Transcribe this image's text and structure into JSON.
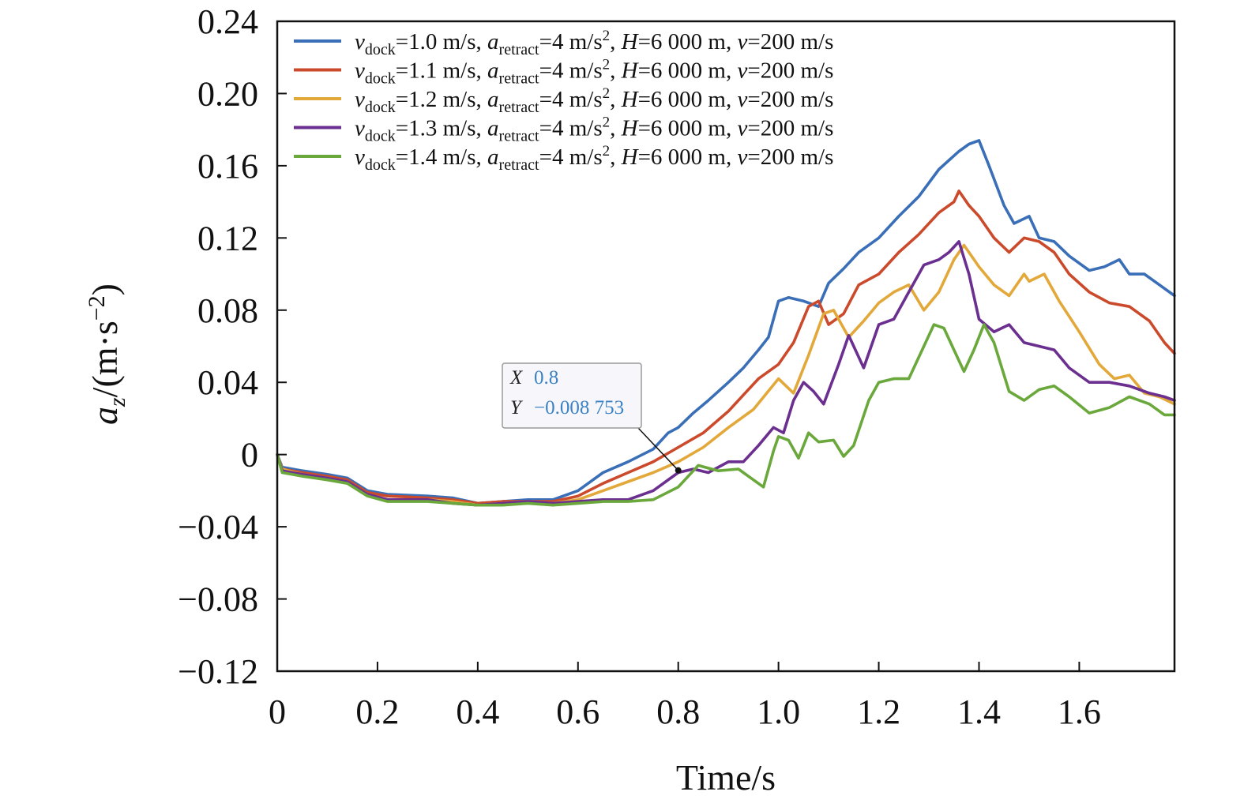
{
  "chart_data": {
    "type": "line",
    "xlabel": "Time/s",
    "ylabel": {
      "prefix": "a",
      "prefix_sub": "z",
      "text": "/(m·s",
      "sup": "−2",
      "suffix": ")"
    },
    "xlim": [
      0,
      1.79
    ],
    "ylim": [
      -0.12,
      0.24
    ],
    "x_ticks": [
      0,
      0.2,
      0.4,
      0.6,
      0.8,
      1.0,
      1.2,
      1.4,
      1.6
    ],
    "x_tick_labels": [
      "0",
      "0.2",
      "0.4",
      "0.6",
      "0.8",
      "1.0",
      "1.2",
      "1.4",
      "1.6"
    ],
    "y_ticks": [
      -0.12,
      -0.08,
      -0.04,
      0,
      0.04,
      0.08,
      0.12,
      0.16,
      0.2,
      0.24
    ],
    "y_tick_labels": [
      "−0.12",
      "−0.08",
      "−0.04",
      "0",
      "0.04",
      "0.08",
      "0.12",
      "0.16",
      "0.20",
      "0.24"
    ],
    "grid": false,
    "legend_position": "top-left",
    "series": [
      {
        "name": "v_dock=1.0 m/s, a_retract=4 m/s², H=6 000 m, v=200 m/s",
        "legend": {
          "v_dock_value": "1.0",
          "rest": "=4 m/s",
          "H_value": "=6 000 m, ",
          "v_value": "=200 m/s"
        },
        "color": "#3a6fb8",
        "x": [
          0,
          0.01,
          0.05,
          0.1,
          0.14,
          0.18,
          0.22,
          0.3,
          0.35,
          0.4,
          0.45,
          0.5,
          0.55,
          0.6,
          0.65,
          0.7,
          0.75,
          0.78,
          0.8,
          0.83,
          0.86,
          0.9,
          0.93,
          0.96,
          0.98,
          1.0,
          1.02,
          1.05,
          1.08,
          1.1,
          1.13,
          1.16,
          1.2,
          1.24,
          1.28,
          1.32,
          1.36,
          1.38,
          1.4,
          1.42,
          1.45,
          1.47,
          1.5,
          1.52,
          1.55,
          1.58,
          1.62,
          1.65,
          1.68,
          1.7,
          1.73,
          1.76,
          1.79
        ],
        "y": [
          0,
          -0.007,
          -0.009,
          -0.011,
          -0.013,
          -0.02,
          -0.022,
          -0.023,
          -0.024,
          -0.027,
          -0.026,
          -0.025,
          -0.025,
          -0.02,
          -0.01,
          -0.004,
          0.003,
          0.012,
          0.015,
          0.023,
          0.03,
          0.04,
          0.048,
          0.058,
          0.065,
          0.085,
          0.087,
          0.085,
          0.082,
          0.095,
          0.103,
          0.112,
          0.12,
          0.132,
          0.143,
          0.158,
          0.168,
          0.172,
          0.174,
          0.16,
          0.138,
          0.128,
          0.132,
          0.12,
          0.118,
          0.11,
          0.102,
          0.104,
          0.108,
          0.1,
          0.1,
          0.094,
          0.088
        ]
      },
      {
        "name": "v_dock=1.1 m/s, a_retract=4 m/s², H=6 000 m, v=200 m/s",
        "legend": {
          "v_dock_value": "1.1",
          "rest": "=4 m/s",
          "H_value": "=6 000 m, ",
          "v_value": "=200 m/s"
        },
        "color": "#cc4a2c",
        "x": [
          0,
          0.01,
          0.05,
          0.1,
          0.14,
          0.18,
          0.22,
          0.3,
          0.35,
          0.4,
          0.45,
          0.5,
          0.55,
          0.6,
          0.65,
          0.7,
          0.75,
          0.8,
          0.85,
          0.9,
          0.93,
          0.96,
          1.0,
          1.03,
          1.06,
          1.08,
          1.1,
          1.13,
          1.16,
          1.2,
          1.24,
          1.28,
          1.32,
          1.35,
          1.36,
          1.38,
          1.4,
          1.43,
          1.46,
          1.49,
          1.52,
          1.55,
          1.58,
          1.62,
          1.66,
          1.7,
          1.74,
          1.77,
          1.79
        ],
        "y": [
          0,
          -0.008,
          -0.01,
          -0.012,
          -0.014,
          -0.021,
          -0.023,
          -0.024,
          -0.025,
          -0.027,
          -0.026,
          -0.026,
          -0.026,
          -0.023,
          -0.016,
          -0.01,
          -0.004,
          0.004,
          0.012,
          0.024,
          0.033,
          0.042,
          0.05,
          0.062,
          0.082,
          0.085,
          0.072,
          0.078,
          0.094,
          0.1,
          0.112,
          0.122,
          0.134,
          0.14,
          0.146,
          0.138,
          0.132,
          0.12,
          0.112,
          0.12,
          0.118,
          0.112,
          0.1,
          0.09,
          0.084,
          0.082,
          0.074,
          0.062,
          0.056
        ]
      },
      {
        "name": "v_dock=1.2 m/s, a_retract=4 m/s², H=6 000 m, v=200 m/s",
        "legend": {
          "v_dock_value": "1.2",
          "rest": "=4 m/s",
          "H_value": "=6 000 m, ",
          "v_value": "=200 m/s"
        },
        "color": "#e3a83a",
        "x": [
          0,
          0.01,
          0.05,
          0.1,
          0.14,
          0.18,
          0.22,
          0.3,
          0.35,
          0.4,
          0.45,
          0.5,
          0.55,
          0.6,
          0.65,
          0.7,
          0.75,
          0.8,
          0.85,
          0.9,
          0.95,
          1.0,
          1.03,
          1.06,
          1.09,
          1.11,
          1.14,
          1.17,
          1.2,
          1.23,
          1.26,
          1.29,
          1.32,
          1.35,
          1.37,
          1.4,
          1.43,
          1.46,
          1.49,
          1.5,
          1.53,
          1.56,
          1.6,
          1.64,
          1.67,
          1.7,
          1.73,
          1.76,
          1.79
        ],
        "y": [
          0,
          -0.008,
          -0.011,
          -0.013,
          -0.015,
          -0.022,
          -0.025,
          -0.025,
          -0.026,
          -0.028,
          -0.027,
          -0.026,
          -0.027,
          -0.025,
          -0.02,
          -0.015,
          -0.01,
          -0.004,
          0.004,
          0.015,
          0.025,
          0.042,
          0.034,
          0.055,
          0.078,
          0.08,
          0.065,
          0.074,
          0.084,
          0.09,
          0.094,
          0.08,
          0.09,
          0.108,
          0.116,
          0.104,
          0.094,
          0.088,
          0.1,
          0.096,
          0.1,
          0.085,
          0.068,
          0.05,
          0.042,
          0.044,
          0.034,
          0.032,
          0.028
        ]
      },
      {
        "name": "v_dock=1.3 m/s, a_retract=4 m/s², H=6 000 m, v=200 m/s",
        "legend": {
          "v_dock_value": "1.3",
          "rest": "=4 m/s",
          "H_value": "=6 000 m, ",
          "v_value": "=200 m/s"
        },
        "color": "#6b2f8f",
        "x": [
          0,
          0.01,
          0.05,
          0.1,
          0.14,
          0.18,
          0.22,
          0.3,
          0.35,
          0.4,
          0.45,
          0.5,
          0.55,
          0.6,
          0.65,
          0.7,
          0.75,
          0.8,
          0.83,
          0.86,
          0.9,
          0.93,
          0.96,
          0.99,
          1.01,
          1.03,
          1.05,
          1.07,
          1.09,
          1.12,
          1.14,
          1.17,
          1.2,
          1.23,
          1.26,
          1.29,
          1.32,
          1.34,
          1.36,
          1.38,
          1.4,
          1.43,
          1.46,
          1.49,
          1.52,
          1.55,
          1.58,
          1.62,
          1.66,
          1.7,
          1.74,
          1.77,
          1.79
        ],
        "y": [
          0,
          -0.009,
          -0.011,
          -0.013,
          -0.015,
          -0.022,
          -0.025,
          -0.025,
          -0.027,
          -0.028,
          -0.027,
          -0.026,
          -0.027,
          -0.026,
          -0.025,
          -0.025,
          -0.02,
          -0.01,
          -0.008,
          -0.01,
          -0.004,
          -0.004,
          0.005,
          0.015,
          0.012,
          0.03,
          0.04,
          0.035,
          0.028,
          0.05,
          0.066,
          0.048,
          0.072,
          0.075,
          0.09,
          0.105,
          0.108,
          0.112,
          0.118,
          0.1,
          0.075,
          0.068,
          0.072,
          0.062,
          0.06,
          0.058,
          0.048,
          0.04,
          0.04,
          0.038,
          0.034,
          0.032,
          0.03
        ]
      },
      {
        "name": "v_dock=1.4 m/s, a_retract=4 m/s², H=6 000 m, v=200 m/s",
        "legend": {
          "v_dock_value": "1.4",
          "rest": "=4 m/s",
          "H_value": "=6 000 m, ",
          "v_value": "=200 m/s"
        },
        "color": "#6aa83c",
        "x": [
          0,
          0.01,
          0.05,
          0.1,
          0.14,
          0.18,
          0.22,
          0.3,
          0.35,
          0.4,
          0.45,
          0.5,
          0.55,
          0.6,
          0.65,
          0.7,
          0.75,
          0.8,
          0.84,
          0.88,
          0.92,
          0.95,
          0.97,
          0.99,
          1.0,
          1.02,
          1.04,
          1.06,
          1.08,
          1.11,
          1.13,
          1.15,
          1.18,
          1.2,
          1.23,
          1.26,
          1.29,
          1.31,
          1.33,
          1.35,
          1.37,
          1.39,
          1.41,
          1.43,
          1.46,
          1.49,
          1.52,
          1.55,
          1.58,
          1.62,
          1.66,
          1.7,
          1.74,
          1.77,
          1.79
        ],
        "y": [
          0,
          -0.01,
          -0.012,
          -0.014,
          -0.016,
          -0.023,
          -0.026,
          -0.026,
          -0.027,
          -0.028,
          -0.028,
          -0.027,
          -0.028,
          -0.027,
          -0.026,
          -0.026,
          -0.025,
          -0.018,
          -0.006,
          -0.009,
          -0.008,
          -0.014,
          -0.018,
          0.002,
          0.01,
          0.008,
          -0.002,
          0.012,
          0.007,
          0.008,
          -0.001,
          0.005,
          0.03,
          0.04,
          0.042,
          0.042,
          0.06,
          0.072,
          0.07,
          0.058,
          0.046,
          0.058,
          0.072,
          0.062,
          0.035,
          0.03,
          0.036,
          0.038,
          0.032,
          0.023,
          0.026,
          0.032,
          0.028,
          0.022,
          0.022
        ]
      }
    ],
    "annotation": {
      "x_key": "X",
      "y_key": "Y",
      "x_value": "0.8",
      "y_value": "−0.008 753",
      "point": [
        0.8,
        -0.008753
      ]
    }
  }
}
